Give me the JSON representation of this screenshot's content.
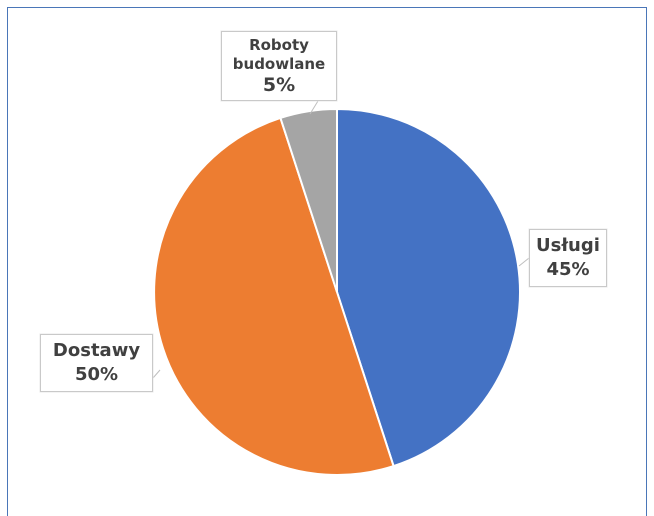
{
  "chart_data": {
    "type": "pie",
    "slices": [
      {
        "name": "Usługi",
        "value": 45,
        "label": "45%",
        "color": "#4472c4"
      },
      {
        "name": "Dostawy",
        "value": 50,
        "label": "50%",
        "color": "#ed7d31"
      },
      {
        "name": "Roboty budowlane",
        "value": 5,
        "label": "5%",
        "color": "#a5a5a5"
      }
    ],
    "labels": {
      "uslugi": {
        "name": "Usługi",
        "pct": "45%"
      },
      "dostawy": {
        "name": "Dostawy",
        "pct": "50%"
      },
      "roboty_line1": "Roboty",
      "roboty_line2": "budowlane",
      "roboty_pct": "5%"
    },
    "legend": "none",
    "start_angle": "12 o'clock, clockwise"
  }
}
